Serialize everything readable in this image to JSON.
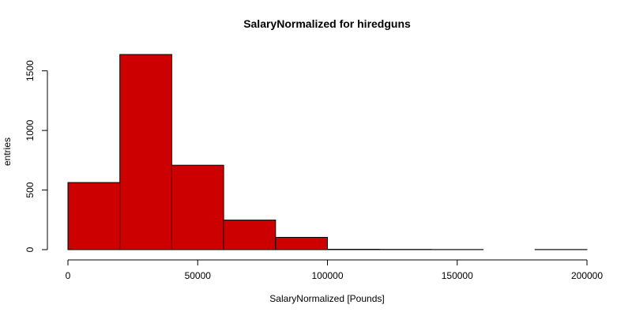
{
  "chart_data": {
    "type": "bar",
    "title": "SalaryNormalized for hiredguns",
    "xlabel": "SalaryNormalized [Pounds]",
    "ylabel": "entries",
    "bin_edges": [
      0,
      20000,
      40000,
      60000,
      80000,
      100000,
      120000,
      140000,
      160000,
      180000,
      200000
    ],
    "values": [
      563,
      1637,
      708,
      248,
      103,
      3,
      2,
      1,
      0,
      1
    ],
    "xlim": [
      0,
      200000
    ],
    "ylim": [
      0,
      1637
    ],
    "x_ticks": [
      0,
      50000,
      100000,
      150000,
      200000
    ],
    "x_tick_labels": [
      "0",
      "50000",
      "100000",
      "150000",
      "200000"
    ],
    "y_ticks": [
      0,
      500,
      1000,
      1500
    ],
    "y_tick_labels": [
      "0",
      "500",
      "1000",
      "1500"
    ],
    "bar_color": "#cc0000",
    "grid": false,
    "legend": "none"
  }
}
